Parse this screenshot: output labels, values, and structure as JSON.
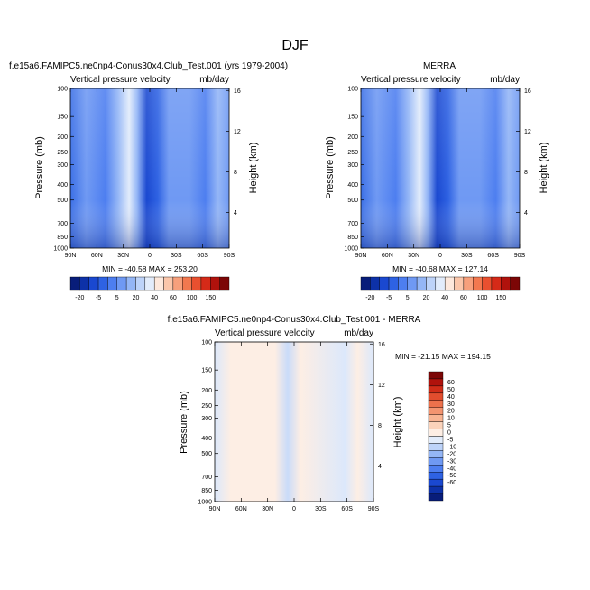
{
  "figure": {
    "title": "DJF"
  },
  "colors": {
    "cb_main": [
      "#081d7a",
      "#0d31a8",
      "#1a48d0",
      "#2e62e3",
      "#4d7ef0",
      "#6f99f3",
      "#94b6f6",
      "#bdd3f9",
      "#e2ecfb",
      "#fde8dc",
      "#fbc6aa",
      "#f7a07c",
      "#f2784f",
      "#e9502f",
      "#d52a18",
      "#b0120c",
      "#7c0606"
    ],
    "cb_diff": [
      "#081d7a",
      "#0d31a8",
      "#1a48d0",
      "#2e62e3",
      "#4d7ef0",
      "#6f99f3",
      "#94b6f6",
      "#bdd3f9",
      "#e2ecfb",
      "#fdeee4",
      "#fbd3bb",
      "#f8b493",
      "#f39470",
      "#ec714c",
      "#e24d2e",
      "#d02c18",
      "#b0120c",
      "#7c0606"
    ]
  },
  "chart_data": [
    {
      "type": "heatmap",
      "id": "model",
      "title": "f.e15a6.FAMIPC5.ne0np4-Conus30x4.Club_Test.001 (yrs 1979-2004)",
      "left_label": "Vertical pressure velocity",
      "right_label": "mb/day",
      "ylabel": "Pressure (mb)",
      "y2label": "Height (km)",
      "x_ticks": [
        "90N",
        "60N",
        "30N",
        "0",
        "30S",
        "60S",
        "90S"
      ],
      "y_ticks": [
        "100",
        "150",
        "200",
        "250",
        "300",
        "400",
        "500",
        "700",
        "850",
        "1000"
      ],
      "y2_ticks": [
        "16",
        "12",
        "8",
        "4"
      ],
      "stats": "MIN = -40.58   MAX = 253.20",
      "colorbar_labels": [
        "-20",
        "-5",
        "5",
        "20",
        "40",
        "60",
        "100",
        "150"
      ]
    },
    {
      "type": "heatmap",
      "id": "obs",
      "title": "MERRA",
      "left_label": "Vertical pressure velocity",
      "right_label": "mb/day",
      "ylabel": "Pressure (mb)",
      "y2label": "Height (km)",
      "x_ticks": [
        "90N",
        "60N",
        "30N",
        "0",
        "30S",
        "60S",
        "90S"
      ],
      "y_ticks": [
        "100",
        "150",
        "200",
        "250",
        "300",
        "400",
        "500",
        "700",
        "850",
        "1000"
      ],
      "y2_ticks": [
        "16",
        "12",
        "8",
        "4"
      ],
      "stats": "MIN = -40.68   MAX = 127.14",
      "colorbar_labels": [
        "-20",
        "-5",
        "5",
        "20",
        "40",
        "60",
        "100",
        "150"
      ]
    },
    {
      "type": "heatmap",
      "id": "diff",
      "title": "f.e15a6.FAMIPC5.ne0np4-Conus30x4.Club_Test.001 - MERRA",
      "left_label": "Vertical pressure velocity",
      "right_label": "mb/day",
      "ylabel": "Pressure (mb)",
      "y2label": "Height (km)",
      "x_ticks": [
        "90N",
        "60N",
        "30N",
        "0",
        "30S",
        "60S",
        "90S"
      ],
      "y_ticks": [
        "100",
        "150",
        "200",
        "250",
        "300",
        "400",
        "500",
        "700",
        "850",
        "1000"
      ],
      "y2_ticks": [
        "16",
        "12",
        "8",
        "4"
      ],
      "stats": "MIN = -21.15   MAX = 194.15",
      "colorbar_labels": [
        "60",
        "50",
        "40",
        "30",
        "20",
        "10",
        "5",
        "0",
        "-5",
        "-10",
        "-20",
        "-30",
        "-40",
        "-50",
        "-60"
      ]
    }
  ]
}
